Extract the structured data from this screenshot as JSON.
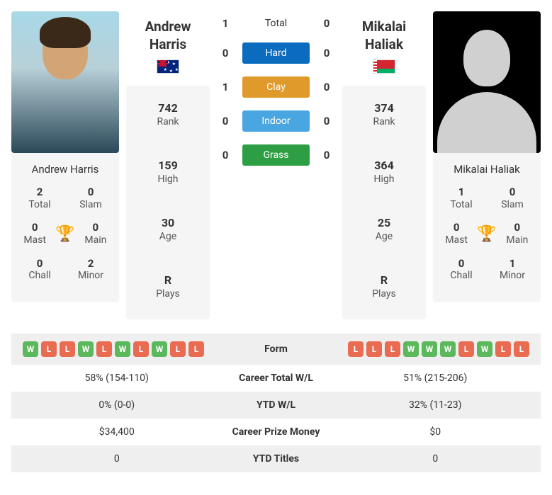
{
  "player1": {
    "name": "Andrew Harris",
    "flag": "au",
    "stats": {
      "rank": {
        "value": "742",
        "label": "Rank"
      },
      "high": {
        "value": "159",
        "label": "High"
      },
      "age": {
        "value": "30",
        "label": "Age"
      },
      "plays": {
        "value": "R",
        "label": "Plays"
      }
    },
    "titles": {
      "total": {
        "value": "2",
        "label": "Total"
      },
      "slam": {
        "value": "0",
        "label": "Slam"
      },
      "mast": {
        "value": "0",
        "label": "Mast"
      },
      "main": {
        "value": "0",
        "label": "Main"
      },
      "chall": {
        "value": "0",
        "label": "Chall"
      },
      "minor": {
        "value": "2",
        "label": "Minor"
      }
    },
    "form": [
      "W",
      "L",
      "L",
      "W",
      "L",
      "W",
      "L",
      "W",
      "L",
      "L"
    ]
  },
  "player2": {
    "name": "Mikalai Haliak",
    "flag": "by",
    "stats": {
      "rank": {
        "value": "374",
        "label": "Rank"
      },
      "high": {
        "value": "364",
        "label": "High"
      },
      "age": {
        "value": "25",
        "label": "Age"
      },
      "plays": {
        "value": "R",
        "label": "Plays"
      }
    },
    "titles": {
      "total": {
        "value": "1",
        "label": "Total"
      },
      "slam": {
        "value": "0",
        "label": "Slam"
      },
      "mast": {
        "value": "0",
        "label": "Mast"
      },
      "main": {
        "value": "0",
        "label": "Main"
      },
      "chall": {
        "value": "0",
        "label": "Chall"
      },
      "minor": {
        "value": "1",
        "label": "Minor"
      }
    },
    "form": [
      "L",
      "L",
      "L",
      "W",
      "W",
      "W",
      "L",
      "W",
      "L",
      "L"
    ]
  },
  "h2h": {
    "total": {
      "label": "Total",
      "p1": "1",
      "p2": "0"
    },
    "hard": {
      "label": "Hard",
      "p1": "0",
      "p2": "0",
      "color": "#0b6bbf"
    },
    "clay": {
      "label": "Clay",
      "p1": "1",
      "p2": "0",
      "color": "#e09a2b"
    },
    "indoor": {
      "label": "Indoor",
      "p1": "0",
      "p2": "0",
      "color": "#4aa6e0"
    },
    "grass": {
      "label": "Grass",
      "p1": "0",
      "p2": "0",
      "color": "#2e9e44"
    }
  },
  "comparison": [
    {
      "key": "form",
      "label": "Form"
    },
    {
      "key": "career",
      "label": "Career Total W/L",
      "p1": "58% (154-110)",
      "p2": "51% (215-206)"
    },
    {
      "key": "ytd",
      "label": "YTD W/L",
      "p1": "0% (0-0)",
      "p2": "32% (11-23)"
    },
    {
      "key": "prize",
      "label": "Career Prize Money",
      "p1": "$34,400",
      "p2": "$0"
    },
    {
      "key": "titles",
      "label": "YTD Titles",
      "p1": "0",
      "p2": "0"
    }
  ],
  "colors": {
    "form_w": "#5cb85c",
    "form_l": "#e86b52"
  }
}
